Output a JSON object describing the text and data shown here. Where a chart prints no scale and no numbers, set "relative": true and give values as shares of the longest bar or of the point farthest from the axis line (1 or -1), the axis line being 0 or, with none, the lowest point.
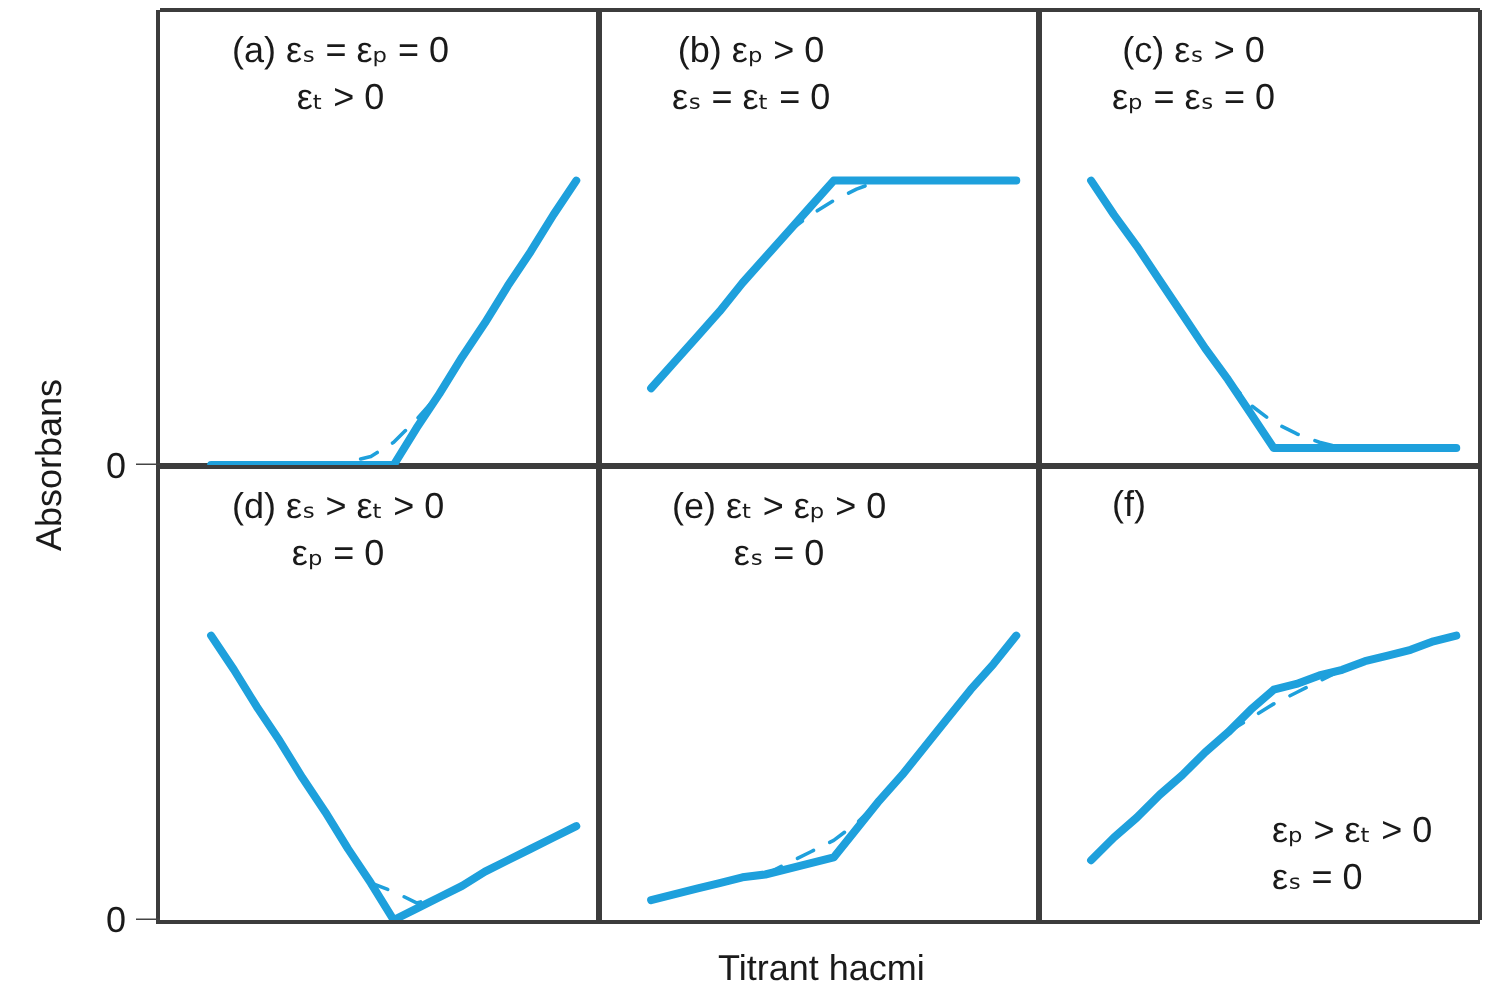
{
  "chart_data": [
    {
      "type": "line",
      "relative": true,
      "title": "(a) εₛ = εₚ = 0\nεₜ > 0",
      "ylabel": "Absorbans",
      "ref_lines": [
        {
          "axis": "y",
          "value": 0,
          "label": "0"
        }
      ],
      "categories": [
        null,
        null,
        null,
        null,
        null,
        null,
        null,
        null,
        null,
        null,
        null,
        null,
        null,
        null,
        null,
        null,
        null
      ],
      "series": [
        {
          "color": "#1ea0dc",
          "line_style": "solid",
          "values": [
            0,
            0,
            0,
            0,
            0,
            0,
            0,
            0,
            0,
            0.13,
            0.25,
            0.38,
            0.5,
            0.63,
            0.75,
            0.88,
            1
          ]
        },
        {
          "color": "#1ea0dc",
          "line_style": "dashed",
          "values": [
            null,
            null,
            null,
            null,
            null,
            0,
            0.01,
            0.03,
            0.08,
            0.16,
            0.25,
            null,
            null,
            null,
            null,
            null,
            null
          ]
        }
      ]
    },
    {
      "type": "line",
      "relative": true,
      "title": "(b) εₚ > 0\nεₛ = εₜ = 0",
      "categories": [
        null,
        null,
        null,
        null,
        null,
        null,
        null,
        null,
        null,
        null,
        null,
        null,
        null,
        null,
        null,
        null,
        null
      ],
      "series": [
        {
          "color": "#1ea0dc",
          "line_style": "solid",
          "values": [
            0.27,
            0.36,
            0.45,
            0.54,
            0.64,
            0.73,
            0.82,
            0.91,
            1,
            1,
            1,
            1,
            1,
            1,
            1,
            1,
            1
          ]
        },
        {
          "color": "#1ea0dc",
          "line_style": "dashed",
          "values": [
            null,
            null,
            null,
            null,
            null,
            null,
            0.82,
            0.88,
            0.93,
            0.97,
            1,
            null,
            null,
            null,
            null,
            null,
            null
          ]
        }
      ]
    },
    {
      "type": "line",
      "relative": true,
      "title": "(c) εₛ > 0\nεₚ = εₛ = 0",
      "categories": [
        null,
        null,
        null,
        null,
        null,
        null,
        null,
        null,
        null,
        null,
        null,
        null,
        null,
        null,
        null,
        null,
        null
      ],
      "series": [
        {
          "color": "#1ea0dc",
          "line_style": "solid",
          "values": [
            1,
            0.88,
            0.77,
            0.65,
            0.53,
            0.41,
            0.3,
            0.18,
            0.06,
            0.06,
            0.06,
            0.06,
            0.06,
            0.06,
            0.06,
            0.06,
            0.06
          ]
        },
        {
          "color": "#1ea0dc",
          "line_style": "dashed",
          "values": [
            null,
            null,
            null,
            null,
            null,
            null,
            0.3,
            0.21,
            0.15,
            0.11,
            0.08,
            0.06,
            null,
            null,
            null,
            null,
            null
          ]
        }
      ]
    },
    {
      "type": "line",
      "relative": true,
      "title": "(d) εₛ > εₜ > 0\nεₚ = 0",
      "ref_lines": [
        {
          "axis": "y",
          "value": 0,
          "label": "0"
        }
      ],
      "categories": [
        null,
        null,
        null,
        null,
        null,
        null,
        null,
        null,
        null,
        null,
        null,
        null,
        null,
        null,
        null,
        null,
        null
      ],
      "series": [
        {
          "color": "#1ea0dc",
          "line_style": "solid",
          "values": [
            1,
            0.88,
            0.75,
            0.63,
            0.5,
            0.38,
            0.25,
            0.13,
            0,
            0.04,
            0.08,
            0.12,
            0.17,
            0.21,
            0.25,
            0.29,
            0.33
          ]
        },
        {
          "color": "#1ea0dc",
          "line_style": "dashed",
          "values": [
            null,
            null,
            null,
            null,
            null,
            null,
            null,
            0.13,
            0.1,
            0.06,
            0.08,
            null,
            null,
            null,
            null,
            null,
            null
          ]
        }
      ]
    },
    {
      "type": "line",
      "relative": true,
      "title": "(e) εₜ > εₚ > 0\nεₛ = 0",
      "xlabel": "Titrant hacmi",
      "categories": [
        null,
        null,
        null,
        null,
        null,
        null,
        null,
        null,
        null,
        null,
        null,
        null,
        null,
        null,
        null,
        null,
        null
      ],
      "series": [
        {
          "color": "#1ea0dc",
          "line_style": "solid",
          "values": [
            0.07,
            0.09,
            0.11,
            0.13,
            0.15,
            0.16,
            0.18,
            0.2,
            0.22,
            0.32,
            0.42,
            0.51,
            0.61,
            0.71,
            0.81,
            0.9,
            1
          ]
        },
        {
          "color": "#1ea0dc",
          "line_style": "dashed",
          "values": [
            null,
            null,
            null,
            null,
            null,
            0.16,
            0.2,
            0.24,
            0.28,
            0.34,
            0.42,
            null,
            null,
            null,
            null,
            null,
            null
          ]
        }
      ]
    },
    {
      "type": "line",
      "relative": true,
      "title": "(f)",
      "annotations": [
        "εₚ > εₜ > 0\nεₛ = 0"
      ],
      "categories": [
        null,
        null,
        null,
        null,
        null,
        null,
        null,
        null,
        null,
        null,
        null,
        null,
        null,
        null,
        null,
        null,
        null
      ],
      "series": [
        {
          "color": "#1ea0dc",
          "line_style": "solid",
          "values": [
            0.21,
            0.29,
            0.36,
            0.44,
            0.51,
            0.59,
            0.66,
            0.74,
            0.81,
            0.83,
            0.86,
            0.88,
            0.91,
            0.93,
            0.95,
            0.98,
            1
          ]
        },
        {
          "color": "#1ea0dc",
          "line_style": "dashed",
          "values": [
            null,
            null,
            null,
            null,
            null,
            null,
            0.66,
            0.71,
            0.76,
            0.8,
            0.84,
            0.88,
            null,
            null,
            null,
            null,
            null
          ]
        }
      ]
    }
  ]
}
